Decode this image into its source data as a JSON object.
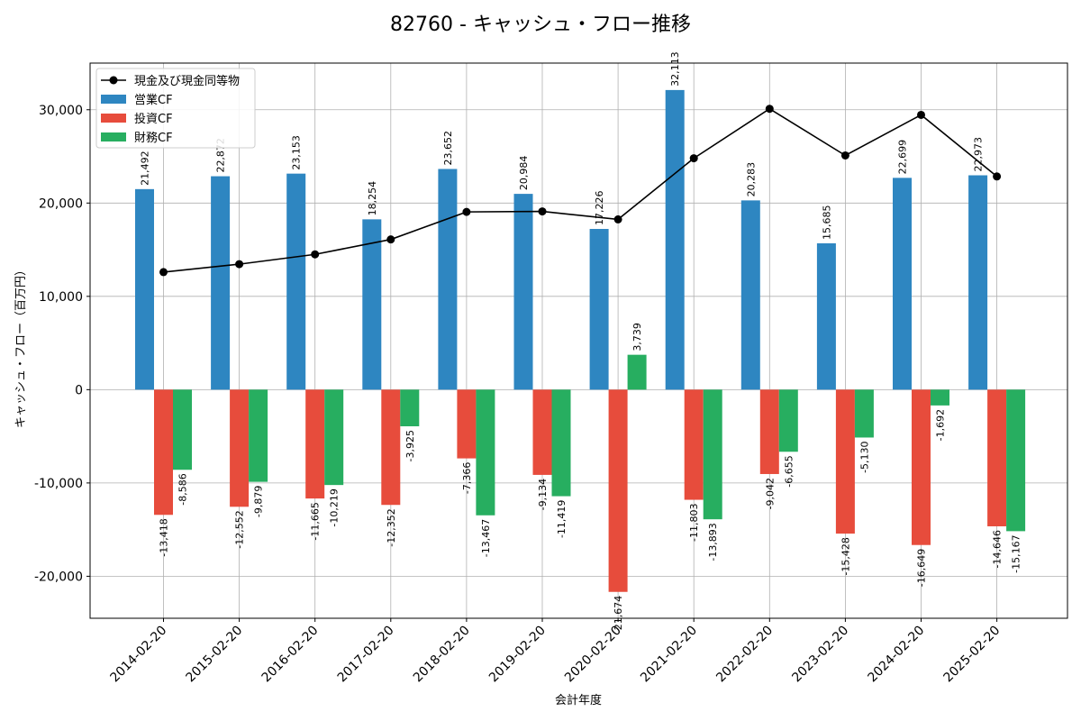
{
  "chart_data": {
    "type": "bar",
    "title": "82760 - キャッシュ・フロー推移",
    "xlabel": "会計年度",
    "ylabel": "キャッシュ・フロー（百万円）",
    "ylim": [
      -24500,
      35000
    ],
    "yticks": [
      -20000,
      -10000,
      0,
      10000,
      20000,
      30000
    ],
    "ytick_labels": [
      "-20,000",
      "-10,000",
      "0",
      "10,000",
      "20,000",
      "30,000"
    ],
    "grid": true,
    "legend_position": "top-left",
    "categories": [
      "2014-02-20",
      "2015-02-20",
      "2016-02-20",
      "2017-02-20",
      "2018-02-20",
      "2019-02-20",
      "2020-02-20",
      "2021-02-20",
      "2022-02-20",
      "2023-02-20",
      "2024-02-20",
      "2025-02-20"
    ],
    "series": [
      {
        "name": "営業CF",
        "kind": "bar",
        "color": "#2e86c1",
        "values": [
          21492,
          22872,
          23153,
          18254,
          23652,
          20984,
          17226,
          32113,
          20283,
          15685,
          22699,
          22973
        ],
        "labels": [
          "21,492",
          "22,872",
          "23,153",
          "18,254",
          "23,652",
          "20,984",
          "17,226",
          "32,113",
          "20,283",
          "15,685",
          "22,699",
          "22,973"
        ]
      },
      {
        "name": "投資CF",
        "kind": "bar",
        "color": "#e74c3c",
        "values": [
          -13418,
          -12552,
          -11665,
          -12352,
          -7366,
          -9134,
          -21674,
          -11803,
          -9042,
          -15428,
          -16649,
          -14646
        ],
        "labels": [
          "-13,418",
          "-12,552",
          "-11,665",
          "-12,352",
          "-7,366",
          "-9,134",
          "-21,674",
          "-11,803",
          "-9,042",
          "-15,428",
          "-16,649",
          "-14,646"
        ]
      },
      {
        "name": "財務CF",
        "kind": "bar",
        "color": "#27ae60",
        "values": [
          -8586,
          -9879,
          -10219,
          -3925,
          -13467,
          -11419,
          3739,
          -13893,
          -6655,
          -5130,
          -1692,
          -15167
        ],
        "labels": [
          "-8,586",
          "-9,879",
          "-10,219",
          "-3,925",
          "-13,467",
          "-11,419",
          "3,739",
          "-13,893",
          "-6,655",
          "-5,130",
          "-1,692",
          "-15,167"
        ]
      },
      {
        "name": "現金及び現金同等物",
        "kind": "line",
        "color": "#000000",
        "values": [
          12600,
          13450,
          14500,
          16100,
          19050,
          19100,
          18250,
          24800,
          30100,
          25100,
          29450,
          22850
        ]
      }
    ]
  }
}
